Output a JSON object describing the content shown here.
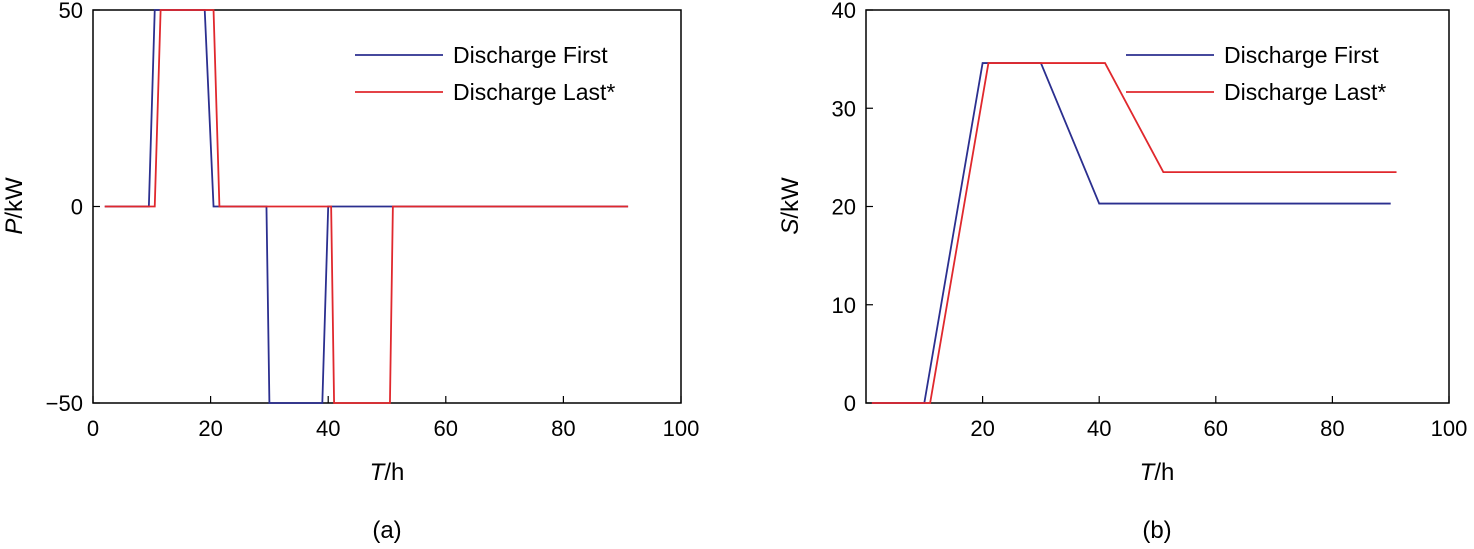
{
  "chart_data": [
    {
      "type": "line",
      "panel_label": "(a)",
      "xlabel_var": "T",
      "xlabel_unit": "/h",
      "ylabel_var": "P",
      "ylabel_unit": "/kW",
      "xlim": [
        0,
        100
      ],
      "ylim": [
        -50,
        50
      ],
      "xticks": [
        0,
        20,
        40,
        60,
        80,
        100
      ],
      "yticks": [
        -50,
        0,
        50
      ],
      "xtick_labels": [
        "0",
        "20",
        "40",
        "60",
        "80",
        "100"
      ],
      "ytick_labels": [
        "−50",
        "0",
        "50"
      ],
      "legend_position": "top-right",
      "series": [
        {
          "name": "Discharge First",
          "color": "#2b2f8f",
          "x": [
            2,
            9.5,
            10.5,
            19,
            20.5,
            29.5,
            30,
            39,
            40,
            91
          ],
          "y": [
            0,
            0,
            50,
            50,
            0,
            0,
            -50,
            -50,
            0,
            0
          ]
        },
        {
          "name": "Discharge Last*",
          "color": "#e0282d",
          "x": [
            2,
            10.5,
            11.5,
            20.5,
            21.5,
            40.5,
            41,
            50.5,
            51,
            91
          ],
          "y": [
            0,
            0,
            50,
            50,
            0,
            0,
            -50,
            -50,
            0,
            0
          ]
        }
      ]
    },
    {
      "type": "line",
      "panel_label": "(b)",
      "xlabel_var": "T",
      "xlabel_unit": "/h",
      "ylabel_var": "S",
      "ylabel_unit": "/kW",
      "xlim": [
        0,
        100
      ],
      "ylim": [
        0,
        40
      ],
      "xticks": [
        20,
        40,
        60,
        80,
        100
      ],
      "yticks": [
        0,
        10,
        20,
        30,
        40
      ],
      "xtick_labels": [
        "20",
        "40",
        "60",
        "80",
        "100"
      ],
      "ytick_labels": [
        "0",
        "10",
        "20",
        "30",
        "40"
      ],
      "legend_position": "top-right",
      "series": [
        {
          "name": "Discharge First",
          "color": "#2b2f8f",
          "x": [
            1,
            10,
            20,
            30,
            40,
            90
          ],
          "y": [
            0,
            0,
            34.6,
            34.6,
            20.3,
            20.3
          ]
        },
        {
          "name": "Discharge Last*",
          "color": "#e0282d",
          "x": [
            1,
            11,
            21,
            41,
            51,
            91
          ],
          "y": [
            0,
            0,
            34.6,
            34.6,
            23.5,
            23.5
          ]
        }
      ]
    }
  ]
}
